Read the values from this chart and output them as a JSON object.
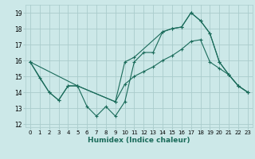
{
  "xlabel": "Humidex (Indice chaleur)",
  "bg_color": "#cce8e8",
  "grid_color": "#aacccc",
  "line_color": "#1a6b5a",
  "xlim": [
    -0.5,
    23.5
  ],
  "ylim": [
    11.8,
    19.5
  ],
  "yticks": [
    12,
    13,
    14,
    15,
    16,
    17,
    18,
    19
  ],
  "xticks": [
    0,
    1,
    2,
    3,
    4,
    5,
    6,
    7,
    8,
    9,
    10,
    11,
    12,
    13,
    14,
    15,
    16,
    17,
    18,
    19,
    20,
    21,
    22,
    23
  ],
  "line1_x": [
    0,
    1,
    2,
    3,
    4,
    5,
    6,
    7,
    8,
    9,
    10,
    11,
    12,
    13,
    14,
    15,
    16,
    17,
    18,
    19,
    20,
    21,
    22,
    23
  ],
  "line1_y": [
    15.9,
    14.9,
    14.0,
    13.5,
    14.4,
    14.4,
    13.1,
    12.5,
    13.1,
    12.5,
    13.4,
    15.9,
    16.5,
    16.5,
    17.8,
    18.0,
    18.1,
    19.0,
    18.5,
    17.7,
    15.9,
    15.1,
    14.4,
    14.0
  ],
  "line2_x": [
    0,
    2,
    3,
    4,
    5,
    9,
    10,
    11,
    12,
    13,
    14,
    15,
    16,
    17,
    18,
    19,
    20,
    21,
    22,
    23
  ],
  "line2_y": [
    15.9,
    14.0,
    13.5,
    14.4,
    14.4,
    13.4,
    14.5,
    15.0,
    15.3,
    15.6,
    16.0,
    16.3,
    16.7,
    17.2,
    17.3,
    15.9,
    15.5,
    15.1,
    14.4,
    14.0
  ],
  "line3_x": [
    0,
    5,
    9,
    10,
    11,
    14,
    15,
    16,
    17,
    18,
    19,
    20,
    21,
    22,
    23
  ],
  "line3_y": [
    15.9,
    14.4,
    13.4,
    15.9,
    16.2,
    17.8,
    18.0,
    18.1,
    19.0,
    18.5,
    17.7,
    15.9,
    15.1,
    14.4,
    14.0
  ]
}
